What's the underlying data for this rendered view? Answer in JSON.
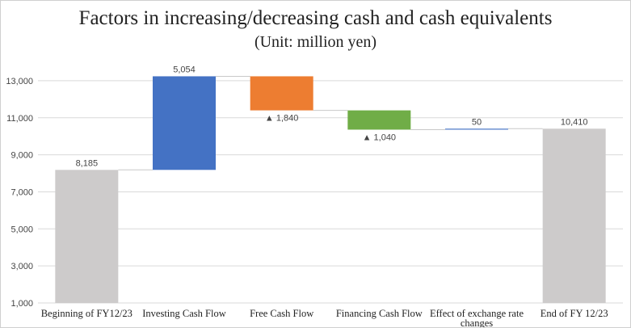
{
  "chart_data": {
    "type": "bar",
    "subtype": "waterfall",
    "title": "Factors in increasing/decreasing cash and cash equivalents",
    "subtitle": "(Unit: million yen)",
    "ylim": [
      1000,
      14000
    ],
    "yticks": [
      "1,000",
      "3,000",
      "5,000",
      "7,000",
      "9,000",
      "11,000",
      "13,000"
    ],
    "ytick_values": [
      1000,
      3000,
      5000,
      7000,
      9000,
      11000,
      13000
    ],
    "grid": true,
    "categories": [
      [
        "Beginning of FY12/23"
      ],
      [
        "Investing Cash Flow"
      ],
      [
        "Free Cash Flow"
      ],
      [
        "Financing Cash Flow"
      ],
      [
        "Effect of exchange rate",
        "changes"
      ],
      [
        "End of FY 12/23"
      ]
    ],
    "bars": [
      {
        "kind": "total",
        "start": 0,
        "end": 8185,
        "label": "8,185",
        "color": "#cdcbcb"
      },
      {
        "kind": "increase",
        "start": 8185,
        "end": 13239,
        "label": "5,054",
        "color": "#4472c4"
      },
      {
        "kind": "decrease",
        "start": 13239,
        "end": 11399,
        "label": "▲ 1,840",
        "color": "#ed7d31"
      },
      {
        "kind": "decrease",
        "start": 11399,
        "end": 10359,
        "label": "▲ 1,040",
        "color": "#70ad47"
      },
      {
        "kind": "increase",
        "start": 10359,
        "end": 10410,
        "label": "50",
        "color": "#4472c4"
      },
      {
        "kind": "total",
        "start": 0,
        "end": 10410,
        "label": "10,410",
        "color": "#cdcbcb"
      }
    ]
  }
}
